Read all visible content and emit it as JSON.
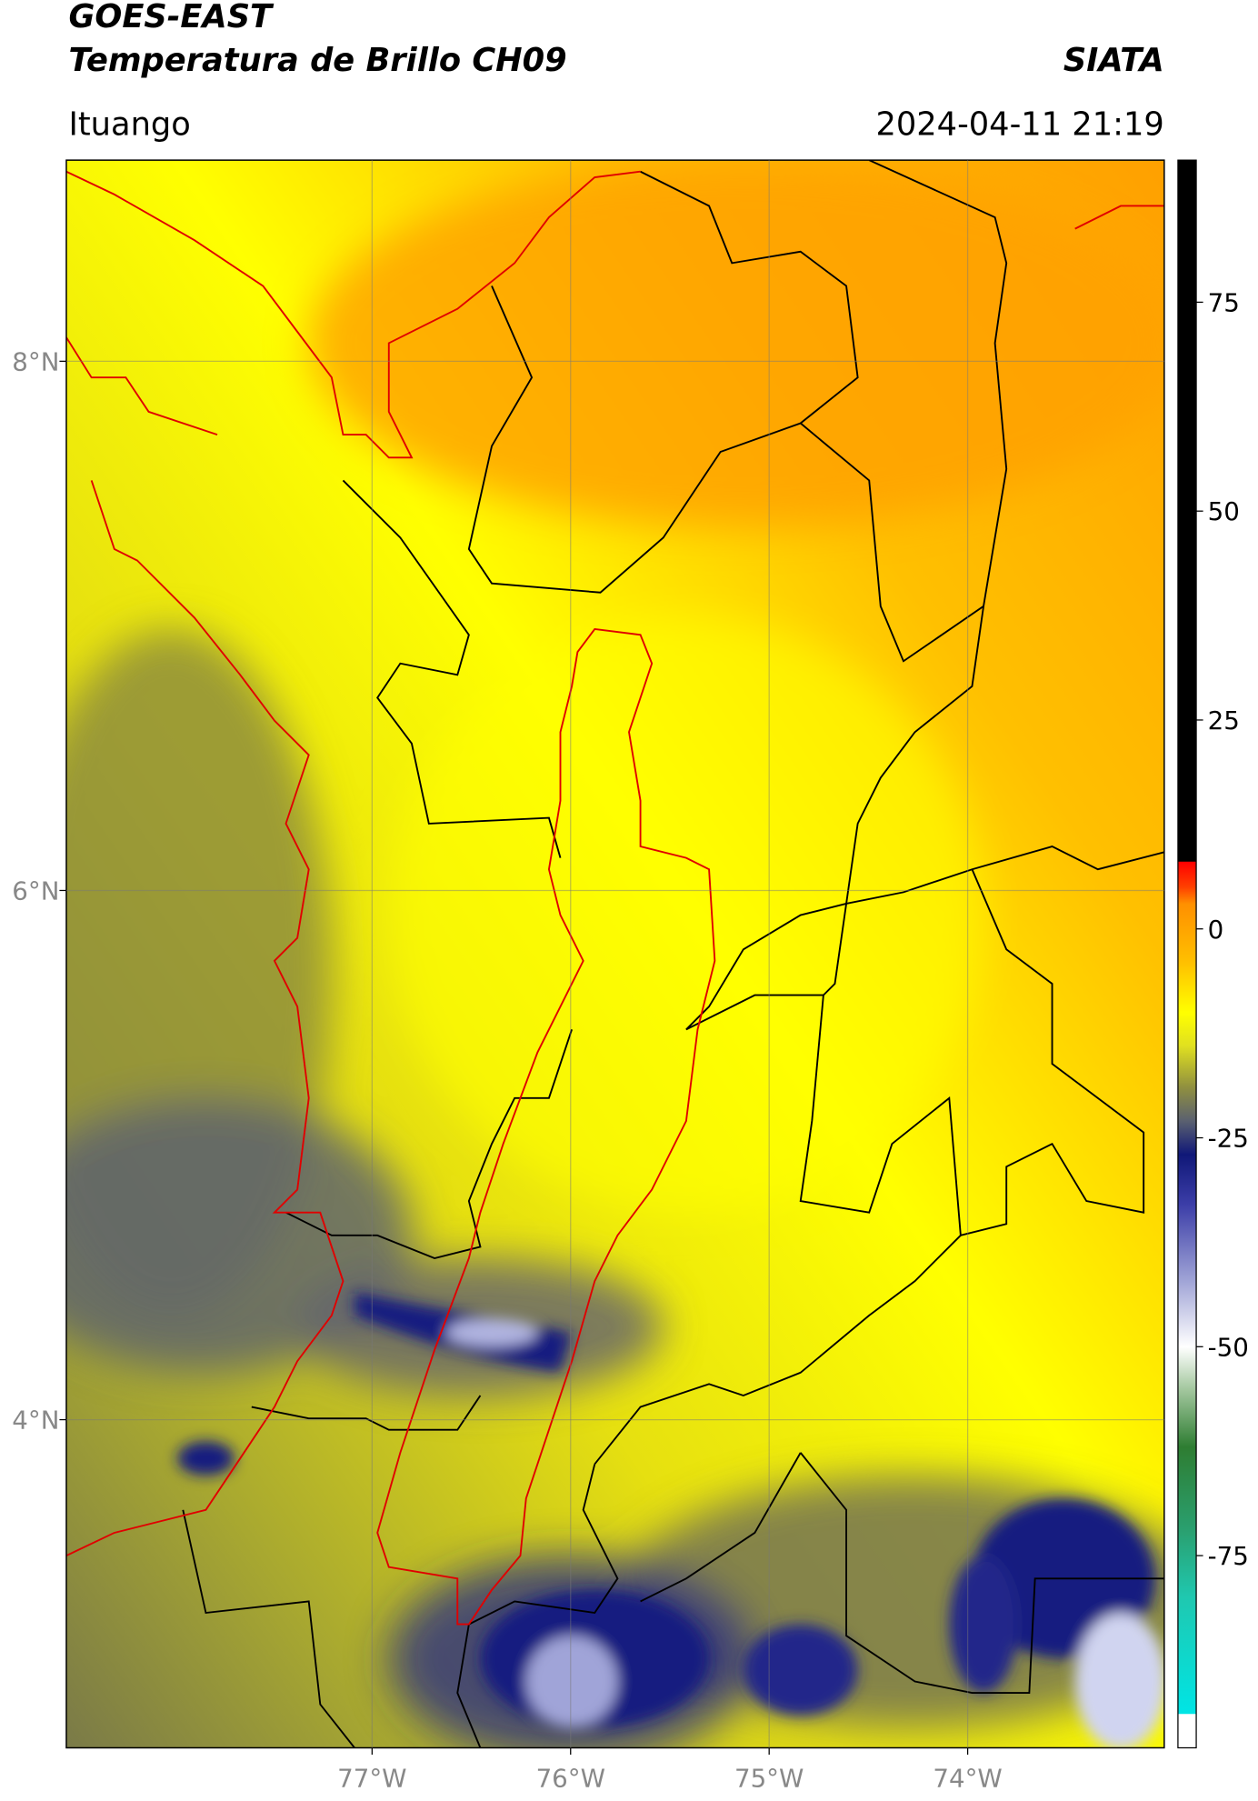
{
  "header": {
    "title": "GOES-EAST",
    "subtitle": "Temperatura de Brillo CH09",
    "source": "SIATA",
    "location": "Ituango",
    "datetime": "2024-04-11 21:19"
  },
  "map": {
    "xlim": [
      -78.54,
      -73.01
    ],
    "ylim": [
      2.76,
      8.76
    ],
    "xticks": [
      {
        "value": -77,
        "label": "77°W"
      },
      {
        "value": -76,
        "label": "76°W"
      },
      {
        "value": -75,
        "label": "75°W"
      },
      {
        "value": -74,
        "label": "74°W"
      }
    ],
    "yticks": [
      {
        "value": 4,
        "label": "4°N"
      },
      {
        "value": 6,
        "label": "6°N"
      },
      {
        "value": 8,
        "label": "8°N"
      }
    ],
    "grid": true
  },
  "colorbar": {
    "lim": [
      -98,
      92
    ],
    "ticks": [
      75,
      50,
      25,
      0,
      -25,
      -50,
      -75
    ],
    "stops": [
      {
        "value": -98,
        "color": "#ffffff"
      },
      {
        "value": -94,
        "color": "#ffffff"
      },
      {
        "value": -93.9,
        "color": "#00e5e5"
      },
      {
        "value": -80,
        "color": "#1fc8b0"
      },
      {
        "value": -72,
        "color": "#2aa070"
      },
      {
        "value": -62,
        "color": "#2e7d32"
      },
      {
        "value": -55,
        "color": "#a5c8a0"
      },
      {
        "value": -50,
        "color": "#ffffff"
      },
      {
        "value": -42,
        "color": "#9fa3d6"
      },
      {
        "value": -33,
        "color": "#3c3ea8"
      },
      {
        "value": -27,
        "color": "#101878"
      },
      {
        "value": -23,
        "color": "#5a6070"
      },
      {
        "value": -19,
        "color": "#8f8f40"
      },
      {
        "value": -14,
        "color": "#e0e020"
      },
      {
        "value": -10,
        "color": "#ffff00"
      },
      {
        "value": -4,
        "color": "#ffc000"
      },
      {
        "value": 3,
        "color": "#ff9000"
      },
      {
        "value": 5,
        "color": "#ff4000"
      },
      {
        "value": 8,
        "color": "#ff0000"
      },
      {
        "value": 8.1,
        "color": "#000000"
      },
      {
        "value": 92,
        "color": "#000000"
      }
    ]
  }
}
